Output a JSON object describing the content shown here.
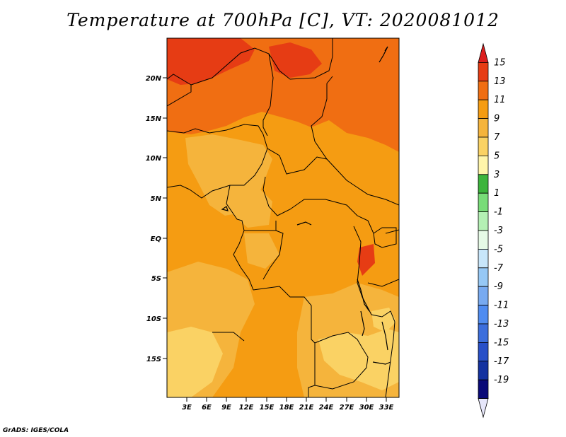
{
  "title": "Temperature at 700hPa [C], VT: 2020081012",
  "credit": "GrADS: IGES/COLA",
  "map": {
    "lat_labels": [
      "20N",
      "15N",
      "10N",
      "5N",
      "EQ",
      "5S",
      "10S",
      "15S"
    ],
    "lon_labels": [
      "3E",
      "6E",
      "9E",
      "12E",
      "15E",
      "18E",
      "21E",
      "24E",
      "27E",
      "30E",
      "33E"
    ],
    "region": "Central Africa",
    "units": "C"
  },
  "colorbar": {
    "labels": [
      "15",
      "13",
      "11",
      "9",
      "7",
      "5",
      "3",
      "1",
      "-1",
      "-3",
      "-5",
      "-7",
      "-9",
      "-11",
      "-13",
      "-15",
      "-17",
      "-19"
    ],
    "colors": [
      "#dc1e1e",
      "#e63c14",
      "#f06e12",
      "#f59c12",
      "#f5b43c",
      "#fad264",
      "#fff5aa",
      "#3cb43c",
      "#78dc78",
      "#b4f0b4",
      "#e6fae6",
      "#c8e6fa",
      "#96c8f5",
      "#78aaf0",
      "#508cf0",
      "#3c6edc",
      "#2850c8",
      "#1432a0",
      "#0a0a78",
      "#e6e6fa"
    ]
  }
}
